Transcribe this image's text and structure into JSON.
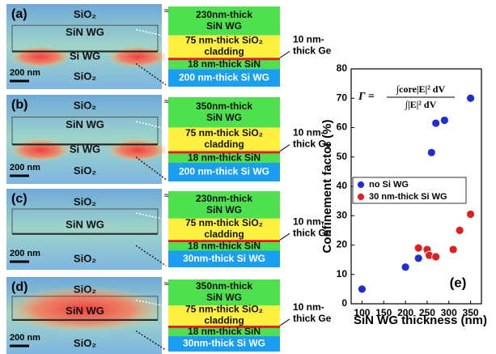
{
  "panels": [
    {
      "label": "(a)",
      "image_labels": [
        "SiO₂",
        "SiN WG",
        "Si WG",
        "SiO₂"
      ],
      "scale_bar": "200 nm",
      "layers": [
        [
          "230nm-thick",
          "SiN WG"
        ],
        [
          "75 nm-thick SiO₂",
          "cladding"
        ],
        [
          "18 nm-thick SiN"
        ],
        [
          "200 nm-thick Si WG"
        ]
      ],
      "ge_label": [
        "10 nm-",
        "thick Ge"
      ]
    },
    {
      "label": "(b)",
      "image_labels": [
        "SiO₂",
        "SiN WG",
        "Si WG",
        "SiO₂"
      ],
      "scale_bar": "200 nm",
      "layers": [
        [
          "350nm-thick",
          "SiN WG"
        ],
        [
          "75 nm-thick SiO₂",
          "cladding"
        ],
        [
          "18 nm-thick SiN"
        ],
        [
          "200 nm-thick Si WG"
        ]
      ],
      "ge_label": [
        "10 nm-",
        "thick Ge"
      ]
    },
    {
      "label": "(c)",
      "image_labels": [
        "SiO₂",
        "SiN WG",
        "SiO₂"
      ],
      "scale_bar": "200 nm",
      "layers": [
        [
          "230nm-thick",
          "SiN WG"
        ],
        [
          "75 nm-thick SiO₂",
          "cladding"
        ],
        [
          "18 nm-thick SiN"
        ],
        [
          "30nm-thick Si WG"
        ]
      ],
      "ge_label": [
        "10 nm-",
        "thick Ge"
      ]
    },
    {
      "label": "(d)",
      "image_labels": [
        "SiO₂",
        "SiN WG",
        "SiO₂"
      ],
      "scale_bar": "200 nm",
      "layers": [
        [
          "350nm-thick",
          "SiN WG"
        ],
        [
          "75 nm-thick SiO₂",
          "cladding"
        ],
        [
          "18 nm-thick SiN"
        ],
        [
          "30nm-thick Si WG"
        ]
      ],
      "ge_label": [
        "10 nm-",
        " thick Ge"
      ]
    }
  ],
  "chart_data": {
    "type": "scatter",
    "panel_label": "(e)",
    "formula": {
      "lhs": "Γ =",
      "numerator": "∫core|E|² dV",
      "denominator": "∫|E|² dV"
    },
    "x_label": "SiN WG thickness (nm)",
    "y_label": "Confinement factor (%)",
    "xlim": [
      75,
      375
    ],
    "ylim": [
      0,
      80
    ],
    "xticks": [
      100,
      150,
      200,
      250,
      300,
      350
    ],
    "yticks": [
      0,
      10,
      20,
      30,
      40,
      50,
      60,
      70,
      80
    ],
    "legend": "center left",
    "series": [
      {
        "name": "no Si WG",
        "color": "#1f2fd0",
        "x": [
          100,
          200,
          230,
          250,
          260,
          270,
          290,
          350
        ],
        "values": [
          5,
          12.5,
          15.5,
          18,
          51.5,
          61.5,
          62.5,
          70
        ]
      },
      {
        "name": "30 nm-thick Si WG",
        "color": "#e02020",
        "x": [
          230,
          250,
          255,
          270,
          310,
          325,
          350
        ],
        "values": [
          19,
          18.5,
          16.5,
          16,
          18.5,
          25,
          30.5
        ]
      }
    ]
  }
}
